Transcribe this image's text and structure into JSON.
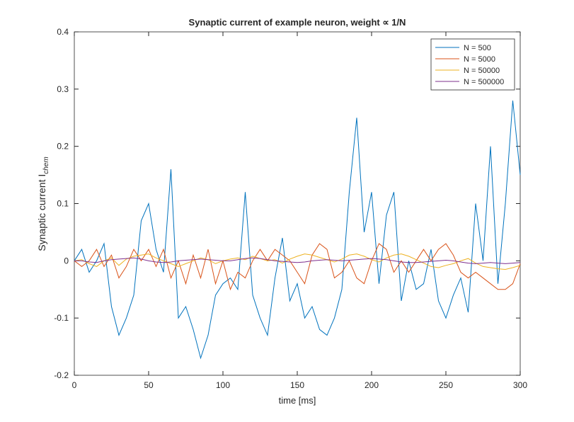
{
  "chart_data": {
    "type": "line",
    "title": "Synaptic current of example neuron, weight ∝ 1/N",
    "xlabel": "time [ms]",
    "ylabel": "Synaptic current I",
    "ylabel_subscript": "chem",
    "x": [
      0,
      5,
      10,
      15,
      20,
      25,
      30,
      35,
      40,
      45,
      50,
      55,
      60,
      65,
      70,
      75,
      80,
      85,
      90,
      95,
      100,
      105,
      110,
      115,
      120,
      125,
      130,
      135,
      140,
      145,
      150,
      155,
      160,
      165,
      170,
      175,
      180,
      185,
      190,
      195,
      200,
      205,
      210,
      215,
      220,
      225,
      230,
      235,
      240,
      245,
      250,
      255,
      260,
      265,
      270,
      275,
      280,
      285,
      290,
      295,
      300
    ],
    "series": [
      {
        "name": "N = 500",
        "color": "#0072BD",
        "values": [
          0,
          0.02,
          -0.02,
          0,
          0.03,
          -0.08,
          -0.13,
          -0.1,
          -0.06,
          0.07,
          0.1,
          0.02,
          -0.02,
          0.16,
          -0.1,
          -0.08,
          -0.12,
          -0.17,
          -0.13,
          -0.06,
          -0.04,
          -0.03,
          -0.05,
          0.12,
          -0.06,
          -0.1,
          -0.13,
          -0.03,
          0.04,
          -0.07,
          -0.04,
          -0.1,
          -0.08,
          -0.12,
          -0.13,
          -0.1,
          -0.05,
          0.12,
          0.25,
          0.05,
          0.12,
          -0.04,
          0.08,
          0.12,
          -0.07,
          0,
          -0.05,
          -0.04,
          0.02,
          -0.07,
          -0.1,
          -0.06,
          -0.03,
          -0.09,
          0.1,
          0,
          0.2,
          -0.04,
          0.1,
          0.28,
          0.15
        ]
      },
      {
        "name": "N = 5000",
        "color": "#D95319",
        "values": [
          0,
          -0.01,
          0,
          0.02,
          -0.01,
          0.01,
          -0.03,
          -0.01,
          0.02,
          0,
          0.02,
          -0.01,
          0.02,
          -0.03,
          0,
          -0.04,
          0.01,
          -0.03,
          0.02,
          -0.04,
          0,
          -0.05,
          -0.02,
          -0.03,
          0,
          0.02,
          0,
          0.02,
          0.01,
          0,
          -0.02,
          -0.04,
          0.01,
          0.03,
          0.02,
          -0.03,
          -0.02,
          0,
          -0.03,
          -0.04,
          0,
          0.03,
          0.02,
          -0.02,
          0,
          -0.02,
          0,
          0.02,
          0,
          0.02,
          0.03,
          0.01,
          -0.02,
          -0.03,
          -0.02,
          -0.03,
          -0.04,
          -0.05,
          -0.05,
          -0.04,
          -0.005
        ]
      },
      {
        "name": "N = 50000",
        "color": "#EDB120",
        "values": [
          0,
          0.002,
          -0.005,
          -0.01,
          0,
          0.005,
          -0.008,
          0.003,
          0.008,
          0.01,
          0.012,
          0.005,
          0,
          -0.005,
          -0.01,
          -0.005,
          0,
          0.005,
          0.002,
          -0.005,
          0,
          0.003,
          0.005,
          0.002,
          0.008,
          0.004,
          0,
          0.002,
          -0.004,
          0.003,
          0.008,
          0.012,
          0.01,
          0.006,
          0.002,
          -0.002,
          0.003,
          0.01,
          0.012,
          0.008,
          0.002,
          -0.002,
          0.005,
          0.01,
          0.012,
          0.008,
          0.002,
          -0.004,
          -0.01,
          -0.012,
          -0.008,
          -0.005,
          0,
          0.004,
          -0.004,
          -0.01,
          -0.012,
          -0.014,
          -0.015,
          -0.012,
          -0.008
        ]
      },
      {
        "name": "N = 500000",
        "color": "#7E2F8E",
        "values": [
          0,
          0,
          -0.002,
          -0.003,
          0,
          0.002,
          0.003,
          0.004,
          0.005,
          0.003,
          0,
          -0.002,
          -0.003,
          -0.002,
          0,
          0.001,
          0.002,
          0.003,
          0.002,
          0.001,
          0,
          0,
          0.002,
          0.004,
          0.005,
          0.004,
          0.002,
          0,
          -0.001,
          -0.002,
          -0.003,
          -0.002,
          0,
          0.001,
          0.002,
          0.001,
          0,
          0.001,
          0.002,
          0.003,
          0.004,
          0.003,
          0.002,
          0,
          -0.002,
          -0.003,
          -0.003,
          -0.002,
          -0.001,
          0,
          0.001,
          0,
          -0.002,
          -0.004,
          -0.005,
          -0.004,
          -0.003,
          -0.004,
          -0.005,
          -0.004,
          -0.003
        ]
      }
    ],
    "xlim": [
      0,
      300
    ],
    "xticks": [
      0,
      50,
      100,
      150,
      200,
      250,
      300
    ],
    "ylim": [
      -0.2,
      0.4
    ],
    "yticks": [
      -0.2,
      -0.1,
      0,
      0.1,
      0.2,
      0.3,
      0.4
    ],
    "grid": false,
    "legend": "northeast"
  }
}
